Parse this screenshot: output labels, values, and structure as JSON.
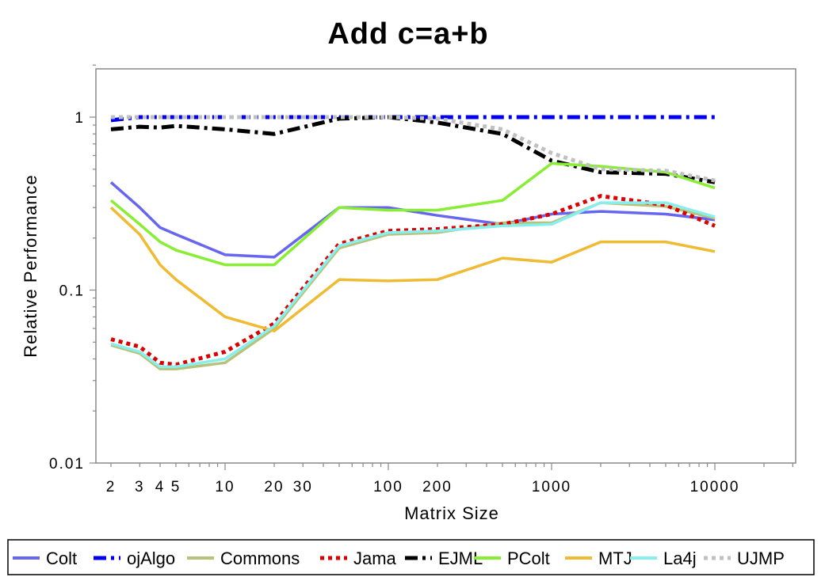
{
  "chart_data": {
    "type": "line",
    "title": "Add c=a+b",
    "xlabel": "Matrix Size",
    "ylabel": "Relative Performance",
    "x_scale": "log",
    "y_scale": "log",
    "xlim": [
      1.7,
      30000
    ],
    "ylim": [
      0.01,
      2
    ],
    "x_tick_labels": [
      {
        "value": 2,
        "label": "2"
      },
      {
        "value": 3,
        "label": "3"
      },
      {
        "value": 4,
        "label": "4"
      },
      {
        "value": 5,
        "label": "5"
      },
      {
        "value": 10,
        "label": "10"
      },
      {
        "value": 20,
        "label": "20"
      },
      {
        "value": 30,
        "label": "30"
      },
      {
        "value": 100,
        "label": "100"
      },
      {
        "value": 200,
        "label": "200"
      },
      {
        "value": 1000,
        "label": "1000"
      },
      {
        "value": 10000,
        "label": "10000"
      }
    ],
    "y_tick_labels": [
      {
        "value": 0.01,
        "label": "0.01"
      },
      {
        "value": 0.1,
        "label": "0.1"
      },
      {
        "value": 1,
        "label": "1"
      }
    ],
    "grid": false,
    "legend_position": "bottom",
    "x": [
      2,
      3,
      4,
      5,
      10,
      20,
      50,
      100,
      200,
      500,
      1000,
      2000,
      5000,
      10000
    ],
    "series": [
      {
        "name": "Colt",
        "color": "#6666ee",
        "dash": "solid",
        "values": [
          0.42,
          0.3,
          0.23,
          0.21,
          0.16,
          0.155,
          0.3,
          0.3,
          0.27,
          0.24,
          0.275,
          0.285,
          0.275,
          0.255
        ]
      },
      {
        "name": "ojAlgo",
        "color": "#0000ee",
        "dash": "dashdot",
        "values": [
          0.96,
          1.0,
          1.0,
          1.0,
          1.0,
          1.0,
          1.0,
          1.0,
          1.0,
          1.0,
          1.0,
          1.0,
          1.0,
          1.0
        ]
      },
      {
        "name": "Commons",
        "color": "#b5c47a",
        "dash": "solid",
        "values": [
          0.048,
          0.043,
          0.035,
          0.035,
          0.038,
          0.06,
          0.175,
          0.21,
          0.215,
          0.245,
          0.245,
          0.32,
          0.305,
          0.26
        ]
      },
      {
        "name": "Jama",
        "color": "#dd0000",
        "dash": "dot",
        "values": [
          0.052,
          0.047,
          0.038,
          0.037,
          0.044,
          0.064,
          0.185,
          0.22,
          0.225,
          0.24,
          0.275,
          0.35,
          0.31,
          0.235
        ]
      },
      {
        "name": "EJML",
        "color": "#000000",
        "dash": "dashdot",
        "values": [
          0.85,
          0.88,
          0.87,
          0.89,
          0.85,
          0.8,
          0.98,
          1.0,
          0.93,
          0.8,
          0.56,
          0.48,
          0.47,
          0.42
        ]
      },
      {
        "name": "PColt",
        "color": "#88ee33",
        "dash": "solid",
        "values": [
          0.33,
          0.24,
          0.19,
          0.17,
          0.14,
          0.14,
          0.3,
          0.29,
          0.29,
          0.33,
          0.54,
          0.52,
          0.48,
          0.39
        ]
      },
      {
        "name": "MTJ",
        "color": "#eebb33",
        "dash": "solid",
        "values": [
          0.3,
          0.21,
          0.14,
          0.115,
          0.07,
          0.058,
          0.115,
          0.113,
          0.115,
          0.153,
          0.145,
          0.19,
          0.19,
          0.167
        ]
      },
      {
        "name": "La4j",
        "color": "#88eeee",
        "dash": "solid",
        "values": [
          0.049,
          0.044,
          0.036,
          0.036,
          0.04,
          0.062,
          0.18,
          0.215,
          0.22,
          0.235,
          0.24,
          0.32,
          0.32,
          0.265
        ]
      },
      {
        "name": "UJMP",
        "color": "#c0c0c0",
        "dash": "dot",
        "values": [
          1.0,
          1.0,
          1.0,
          1.0,
          1.0,
          1.0,
          1.0,
          1.0,
          0.98,
          0.85,
          0.62,
          0.5,
          0.49,
          0.43
        ]
      }
    ]
  }
}
